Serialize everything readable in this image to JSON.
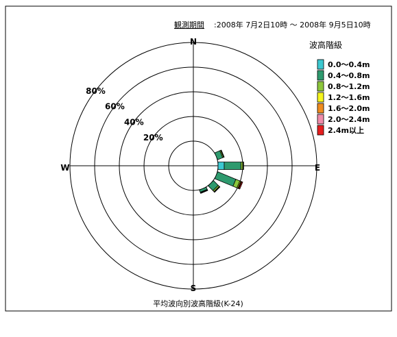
{
  "header": {
    "period_label": "観測期間",
    "period_value": ":2008年 7月2日10時 ～ 2008年 9月5日10時"
  },
  "caption": "平均波向別波高階級(K-24)",
  "chart_data": {
    "type": "polar-stacked-bar",
    "radial_ticks": [
      "20%",
      "40%",
      "60%",
      "80%"
    ],
    "radial_max": 80,
    "directions": {
      "north": "N",
      "east": "E",
      "south": "S",
      "west": "W"
    },
    "legend": {
      "title": "波高階級",
      "placement": "right",
      "entries": [
        {
          "label": "0.0～0.4m",
          "color": "#3cc8d0"
        },
        {
          "label": "0.4～0.8m",
          "color": "#2e9a6e"
        },
        {
          "label": "0.8～1.2m",
          "color": "#8cc63c"
        },
        {
          "label": "1.2～1.6m",
          "color": "#f5f51e"
        },
        {
          "label": "1.6～2.0m",
          "color": "#f08c1e"
        },
        {
          "label": "2.0～2.4m",
          "color": "#f08caa"
        },
        {
          "label": "2.4m以上",
          "color": "#e61e1e"
        }
      ]
    },
    "sectors": [
      {
        "direction_deg": 67.5,
        "values": [
          0.0,
          4.5,
          0.8,
          0.3,
          0.2,
          0.0,
          0.0
        ]
      },
      {
        "direction_deg": 90.0,
        "values": [
          5.0,
          13.5,
          1.5,
          0.5,
          0.3,
          0.0,
          0.0
        ]
      },
      {
        "direction_deg": 112.5,
        "values": [
          0.0,
          16.0,
          3.5,
          0.8,
          0.6,
          0.3,
          0.8
        ]
      },
      {
        "direction_deg": 135.0,
        "values": [
          0.0,
          5.5,
          1.2,
          0.5,
          0.2,
          0.0,
          0.0
        ]
      },
      {
        "direction_deg": 157.5,
        "values": [
          0.0,
          2.0,
          0.5,
          0.3,
          0.2,
          0.0,
          0.0
        ]
      }
    ]
  }
}
